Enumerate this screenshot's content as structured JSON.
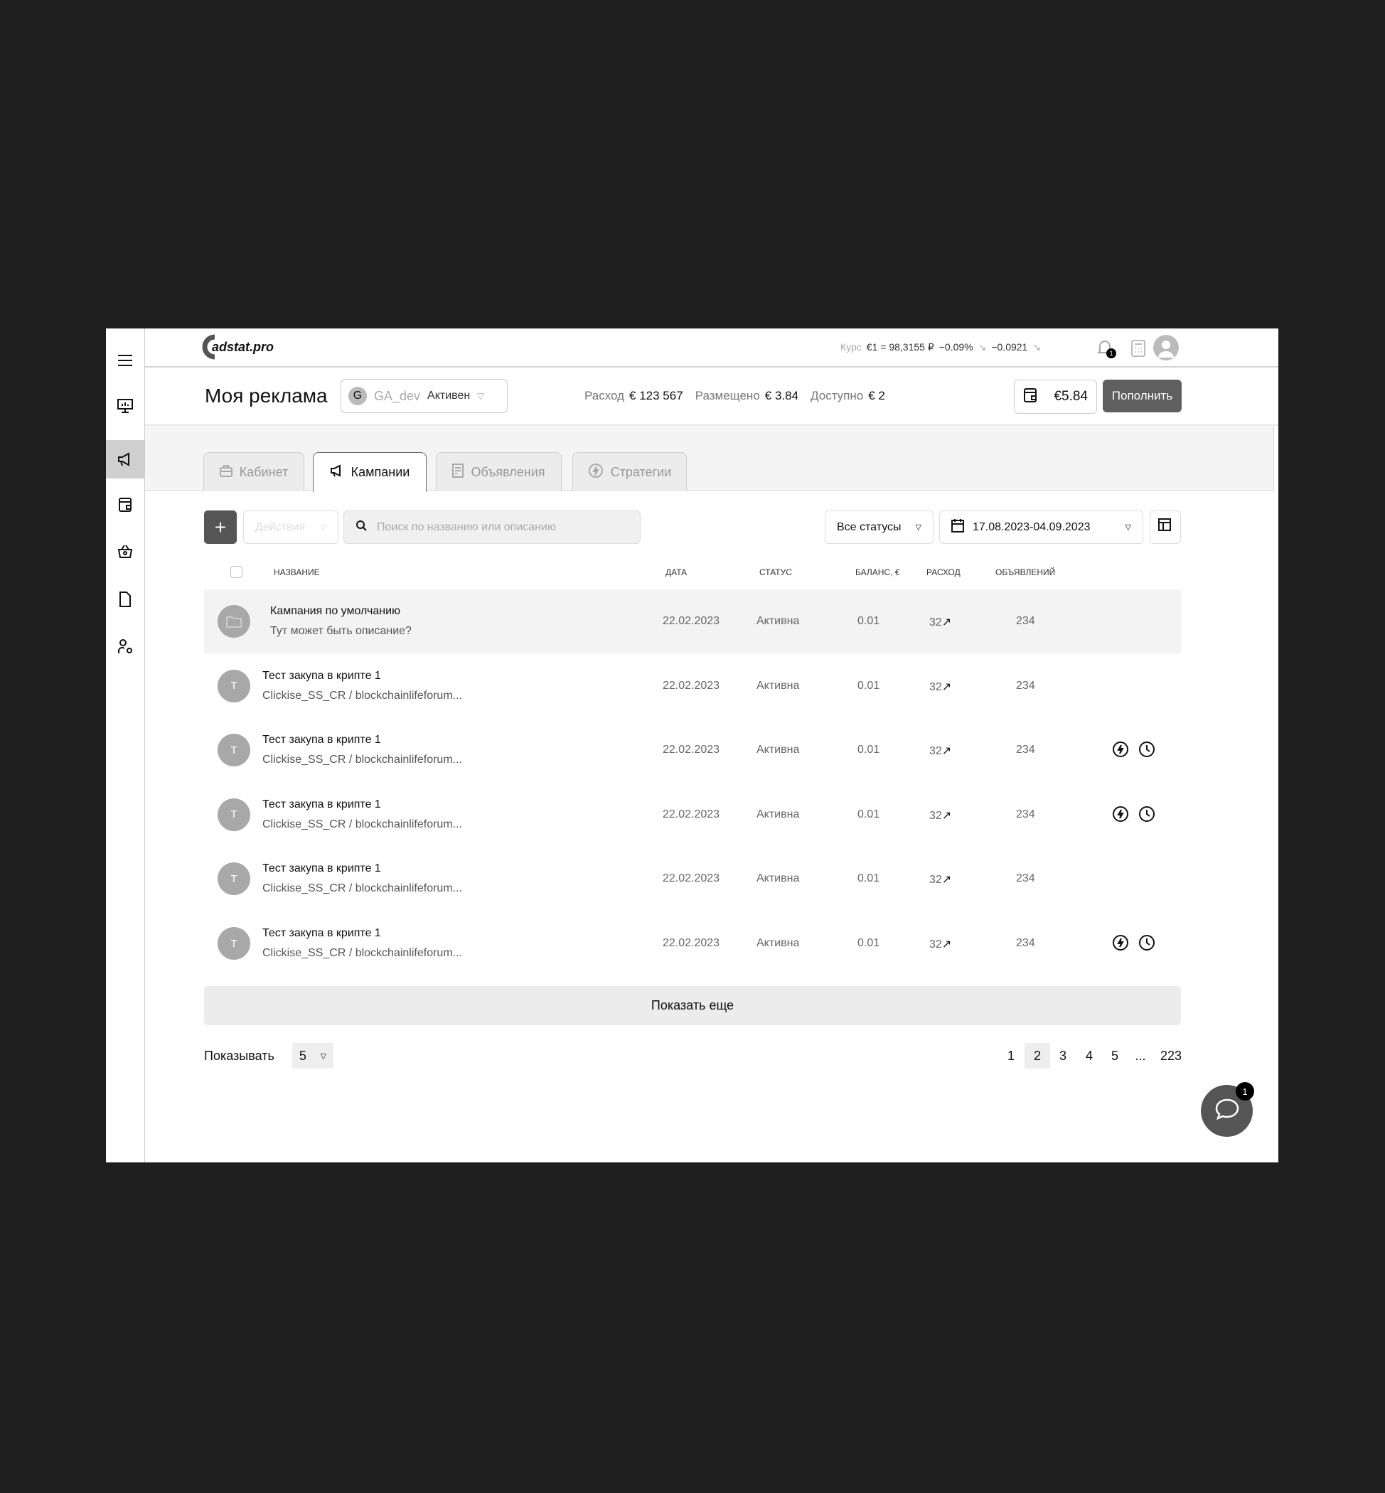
{
  "logo": "adstat.pro",
  "rate": {
    "label": "Курс",
    "value": "€1 = 98,3155 ₽",
    "change_pct": "−0.09%",
    "change_abs": "−0.0921"
  },
  "notifications_count": "1",
  "header": {
    "title": "Моя реклама",
    "account": {
      "initial": "G",
      "name": "GA_dev",
      "status": "Активен"
    },
    "spend_label": "Расход",
    "spend": "€ 123 567",
    "placed_label": "Размещено",
    "placed": "€ 3.84",
    "available_label": "Доступно",
    "available": "€ 2",
    "balance": "€5.84",
    "topup": "Пополнить"
  },
  "tabs": [
    {
      "label": "Кабинет"
    },
    {
      "label": "Кампании"
    },
    {
      "label": "Объявления"
    },
    {
      "label": "Стратегии"
    }
  ],
  "active_tab": "Кампании",
  "toolbar": {
    "actions": "Действия",
    "search_placeholder": "Поиск по названию или описанию",
    "status_filter": "Все статусы",
    "date_range": "17.08.2023-04.09.2023"
  },
  "table": {
    "columns": [
      "НАЗВАНИЕ",
      "ДАТА",
      "СТАТУС",
      "БАЛАНС, €",
      "РАСХОД",
      "ОБЪЯВЛЕНИЙ"
    ],
    "rows": [
      {
        "initial": "",
        "title": "Кампания по умолчанию",
        "subtitle": "Тут может быть описание?",
        "date": "22.02.2023",
        "status": "Активна",
        "balance": "0.01",
        "spend": "32",
        "ads": "234",
        "icons": false,
        "folder": true
      },
      {
        "initial": "T",
        "title": "Тест закупа в крипте 1",
        "subtitle": "Clickise_SS_CR / blockchainlifeforum...",
        "date": "22.02.2023",
        "status": "Активна",
        "balance": "0.01",
        "spend": "32",
        "ads": "234",
        "icons": false
      },
      {
        "initial": "T",
        "title": "Тест закупа в крипте 1",
        "subtitle": "Clickise_SS_CR / blockchainlifeforum...",
        "date": "22.02.2023",
        "status": "Активна",
        "balance": "0.01",
        "spend": "32",
        "ads": "234",
        "icons": true
      },
      {
        "initial": "T",
        "title": "Тест закупа в крипте 1",
        "subtitle": "Clickise_SS_CR / blockchainlifeforum...",
        "date": "22.02.2023",
        "status": "Активна",
        "balance": "0.01",
        "spend": "32",
        "ads": "234",
        "icons": true
      },
      {
        "initial": "T",
        "title": "Тест закупа в крипте 1",
        "subtitle": "Clickise_SS_CR / blockchainlifeforum...",
        "date": "22.02.2023",
        "status": "Активна",
        "balance": "0.01",
        "spend": "32",
        "ads": "234",
        "icons": false
      },
      {
        "initial": "T",
        "title": "Тест закупа в крипте 1",
        "subtitle": "Clickise_SS_CR / blockchainlifeforum...",
        "date": "22.02.2023",
        "status": "Активна",
        "balance": "0.01",
        "spend": "32",
        "ads": "234",
        "icons": true
      }
    ]
  },
  "show_more": "Показать еще",
  "pagination": {
    "per_page_label": "Показывать",
    "per_page": "5",
    "pages": [
      "1",
      "2",
      "3",
      "4",
      "5",
      "...",
      "223"
    ],
    "current": "2"
  },
  "chat_badge": "1"
}
